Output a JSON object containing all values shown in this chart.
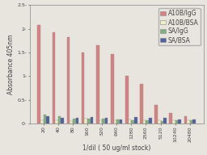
{
  "categories": [
    "20",
    "40",
    "80",
    "160",
    "320",
    "640",
    "1280",
    "2560",
    "5120",
    "10240",
    "20480"
  ],
  "series": {
    "A10B/IgG": [
      2.07,
      1.92,
      1.82,
      1.5,
      1.65,
      1.47,
      1.01,
      0.84,
      0.39,
      0.22,
      0.15
    ],
    "A10B/BSA": [
      0.07,
      0.06,
      0.05,
      0.1,
      0.07,
      0.06,
      0.08,
      0.07,
      0.07,
      0.07,
      0.07
    ],
    "SA/IgG": [
      0.19,
      0.15,
      0.1,
      0.1,
      0.1,
      0.08,
      0.07,
      0.07,
      0.05,
      0.06,
      0.06
    ],
    "SA/BSA": [
      0.15,
      0.12,
      0.12,
      0.13,
      0.12,
      0.09,
      0.13,
      0.12,
      0.12,
      0.09,
      0.09
    ]
  },
  "colors": {
    "A10B/IgG": "#D98080",
    "A10B/BSA": "#EFEFC8",
    "SA/IgG": "#80B080",
    "SA/BSA": "#5060A0"
  },
  "ylabel": "Absorbance 405nm",
  "xlabel": "1/dil ( 50 ug/ml stock)",
  "ylim": [
    0,
    2.5
  ],
  "yticks": [
    0,
    0.5,
    1.0,
    1.5,
    2.0,
    2.5
  ],
  "ytick_labels": [
    "0-",
    "0.5-",
    "1-",
    "1.5-",
    "2-",
    "2.5-"
  ],
  "axis_fontsize": 5.5,
  "tick_fontsize": 4.5,
  "legend_fontsize": 5.5,
  "bar_width": 0.2,
  "background_color": "#e8e4de"
}
